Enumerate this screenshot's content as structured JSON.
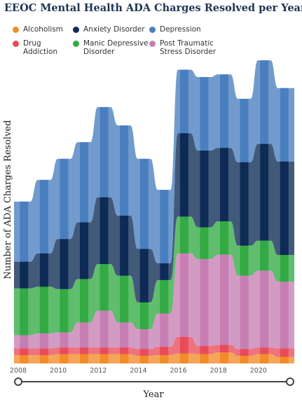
{
  "chart_data": {
    "type": "area",
    "title": "EEOC Mental Health ADA Charges Resolved per Year",
    "xlabel": "Year",
    "ylabel": "Number of ADA Charges Resolved",
    "x": [
      2008,
      2009,
      2010,
      2011,
      2012,
      2013,
      2014,
      2015,
      2016,
      2017,
      2018,
      2019,
      2020,
      2021
    ],
    "x_tick_labels": [
      "2008",
      "2010",
      "2012",
      "2014",
      "2016",
      "2018",
      "2020"
    ],
    "ylim": [
      0,
      90
    ],
    "grid": false,
    "legend_position": "top",
    "series": [
      {
        "name": "Alcoholism",
        "color": "#f28c28",
        "values": [
          2.5,
          2.5,
          2.8,
          2.8,
          2.8,
          2.8,
          2.3,
          2.5,
          3,
          2.8,
          3.3,
          2.3,
          2.8,
          2
        ]
      },
      {
        "name": "Drug Addiction",
        "color": "#e84c5a",
        "values": [
          2,
          2,
          2,
          2,
          2,
          2,
          2,
          2.5,
          5,
          2.5,
          2.3,
          2,
          2,
          2.5
        ]
      },
      {
        "name": "Post Traumatic Stress Disorder",
        "color": "#c77fb3",
        "values": [
          4,
          4.5,
          4.5,
          7.5,
          11,
          7.5,
          6,
          10,
          25,
          26,
          27,
          22,
          23,
          20
        ]
      },
      {
        "name": "Manic Depressive Disorder",
        "color": "#33aa44",
        "values": [
          14,
          14,
          13,
          13,
          14,
          14,
          8,
          10,
          11,
          9.5,
          10,
          9,
          9,
          8
        ]
      },
      {
        "name": "Anxiety Disorder",
        "color": "#0d2b55",
        "values": [
          8,
          10,
          15,
          17,
          20,
          18,
          16,
          5,
          25,
          23,
          22,
          25,
          29,
          28
        ]
      },
      {
        "name": "Depression",
        "color": "#4a7fbf",
        "values": [
          18,
          22,
          24,
          24,
          27,
          27,
          27,
          22,
          19,
          22,
          22,
          19,
          25,
          22
        ]
      }
    ],
    "legend_order": [
      "Alcoholism",
      "Anxiety Disorder",
      "Depression",
      "Drug Addiction",
      "Manic Depressive Disorder",
      "Post Traumatic Stress Disorder"
    ],
    "legend_labels": {
      "Alcoholism": "Alcoholism",
      "Anxiety Disorder": "Anxiety Disorder",
      "Depression": "Depression",
      "Drug Addiction": "Drug\nAddiction",
      "Manic Depressive Disorder": "Manic Depressive\nDisorder",
      "Post Traumatic Stress Disorder": "Post Traumatic\nStress Disorder"
    },
    "range_slider": {
      "start": 2008,
      "end": 2021
    }
  }
}
